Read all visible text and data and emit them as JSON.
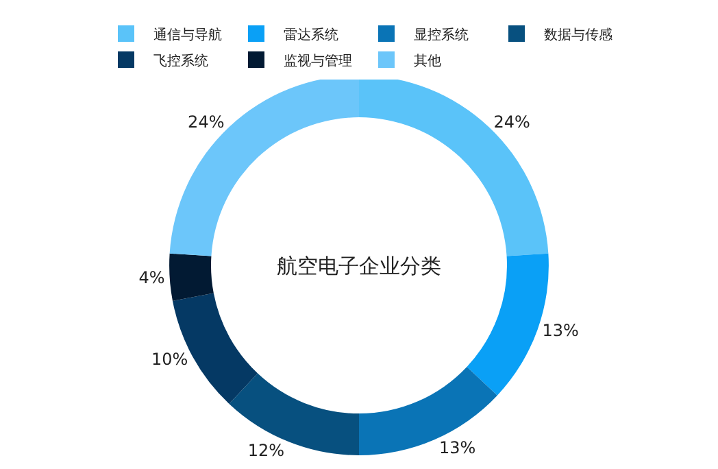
{
  "chart_data": {
    "type": "donut",
    "title": "航空电子企业分类",
    "categories": [
      "通信与导航",
      "雷达系统",
      "显控系统",
      "数据与传感",
      "飞控系统",
      "监视与管理",
      "其他"
    ],
    "values": [
      24,
      13,
      13,
      12,
      10,
      4,
      24
    ],
    "colors": [
      "#5ac3f9",
      "#0aa0f6",
      "#0a74b6",
      "#07507f",
      "#053964",
      "#021a33",
      "#6cc6fa"
    ],
    "value_labels": [
      "24%",
      "13%",
      "13%",
      "12%",
      "10%",
      "4%",
      "24%"
    ],
    "legend": "top"
  }
}
